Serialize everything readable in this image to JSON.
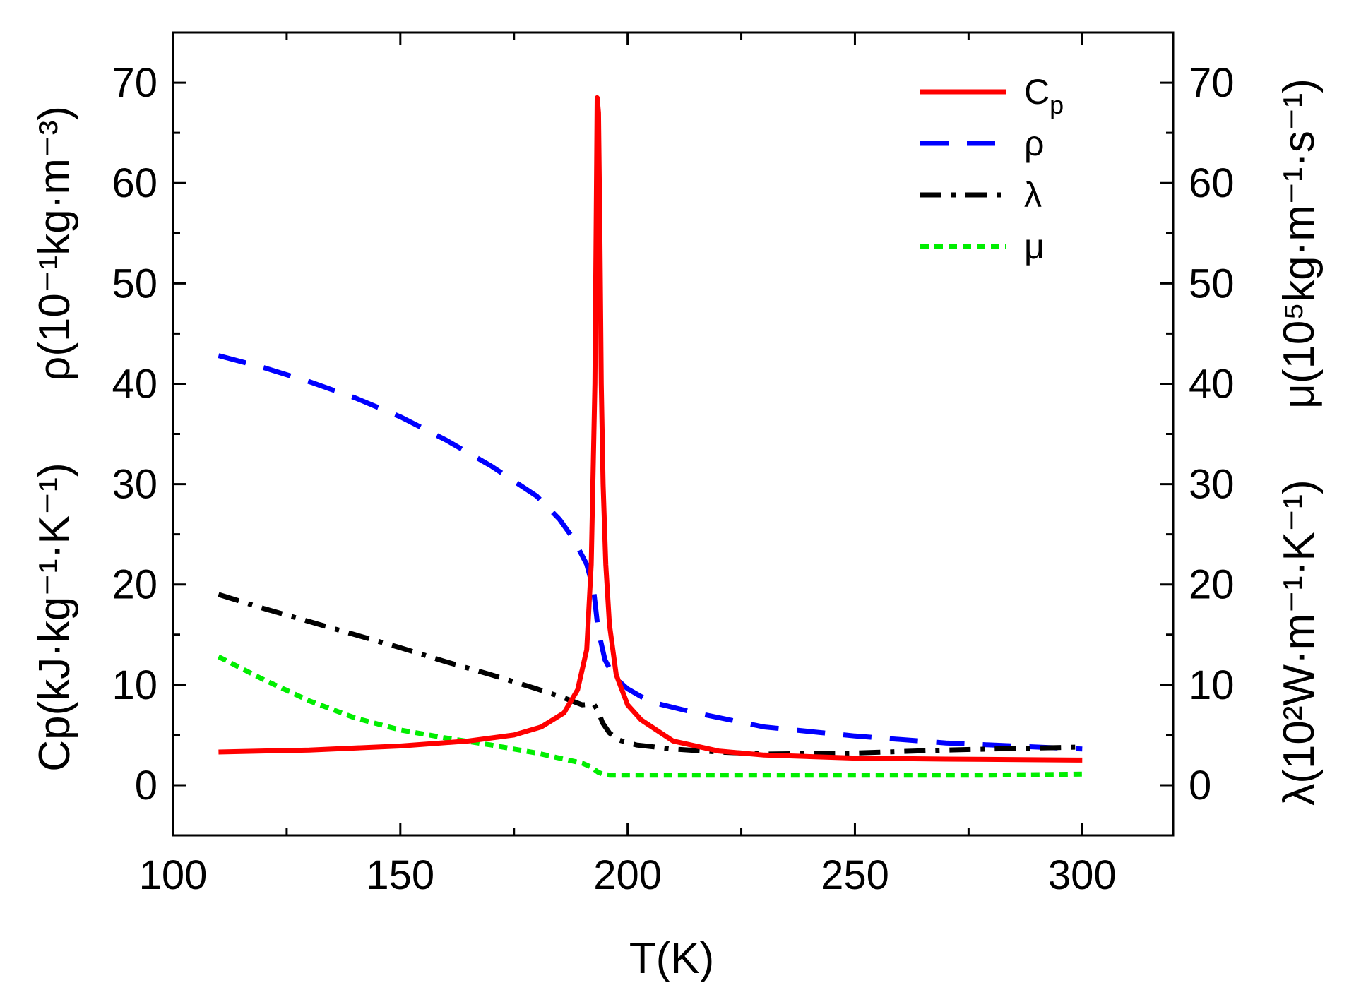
{
  "chart_data": {
    "type": "line",
    "xlabel": "T(K)",
    "left_ylabel": {
      "upper": "ρ(10⁻¹kg·m⁻³)",
      "lower": "Cp(kJ·kg⁻¹·K⁻¹)"
    },
    "right_ylabel": {
      "upper": "μ(10⁵kg·m⁻¹·s⁻¹)",
      "lower": "λ(10²W·m⁻¹·K⁻¹)"
    },
    "xlim": [
      100,
      320
    ],
    "ylim": [
      -5,
      75
    ],
    "xticks": [
      100,
      150,
      200,
      250,
      300
    ],
    "yticks": [
      0,
      10,
      20,
      30,
      40,
      50,
      60,
      70
    ],
    "legend_position": "top-right",
    "series": [
      {
        "name": "Cp",
        "label_main": "C",
        "label_sub": "p",
        "color": "#ff0000",
        "style": "solid",
        "x": [
          110,
          130,
          150,
          165,
          175,
          181,
          186,
          189,
          191,
          192,
          192.8,
          193.3,
          193.6,
          193.9,
          194.2,
          194.6,
          195.2,
          196,
          197.5,
          200,
          203,
          210,
          220,
          230,
          250,
          270,
          300
        ],
        "y": [
          3.3,
          3.5,
          3.9,
          4.4,
          5.0,
          5.8,
          7.2,
          9.5,
          13.5,
          22,
          40,
          68.5,
          67,
          55,
          40,
          30,
          22,
          16,
          11,
          8,
          6.5,
          4.4,
          3.4,
          3.0,
          2.7,
          2.6,
          2.5
        ]
      },
      {
        "name": "ρ",
        "label_main": "ρ",
        "label_sub": "",
        "color": "#0000ff",
        "style": "dashed",
        "x": [
          110,
          120,
          130,
          140,
          150,
          160,
          170,
          180,
          185,
          188,
          191,
          192.5,
          193.5,
          195,
          197,
          200,
          205,
          215,
          230,
          250,
          270,
          300
        ],
        "y": [
          42.8,
          41.6,
          40.2,
          38.6,
          36.7,
          34.4,
          31.8,
          28.8,
          26.5,
          24.6,
          22.0,
          19.5,
          15.5,
          12.5,
          10.8,
          9.6,
          8.3,
          7.2,
          5.8,
          4.9,
          4.2,
          3.6
        ]
      },
      {
        "name": "λ",
        "label_main": "λ",
        "label_sub": "",
        "color": "#000000",
        "style": "dash-dot",
        "x": [
          110,
          120,
          130,
          140,
          150,
          160,
          170,
          180,
          186,
          190,
          192.5,
          193.5,
          194.5,
          196,
          198,
          202,
          210,
          220,
          230,
          250,
          270,
          300
        ],
        "y": [
          19.0,
          17.6,
          16.3,
          15.0,
          13.7,
          12.3,
          11.0,
          9.6,
          8.7,
          8.0,
          8.1,
          7.4,
          6.2,
          5.2,
          4.5,
          4.0,
          3.6,
          3.3,
          3.1,
          3.2,
          3.5,
          3.8
        ]
      },
      {
        "name": "μ",
        "label_main": "μ",
        "label_sub": "",
        "color": "#00ee00",
        "style": "dotted",
        "x": [
          110,
          120,
          130,
          140,
          150,
          160,
          170,
          180,
          186,
          190,
          192,
          193.5,
          194.5,
          196,
          200,
          220,
          250,
          280,
          300
        ],
        "y": [
          12.8,
          10.5,
          8.4,
          6.7,
          5.5,
          4.7,
          4.0,
          3.2,
          2.6,
          2.2,
          1.8,
          1.3,
          1.1,
          1.0,
          1.0,
          1.0,
          1.0,
          1.0,
          1.1
        ]
      }
    ]
  }
}
